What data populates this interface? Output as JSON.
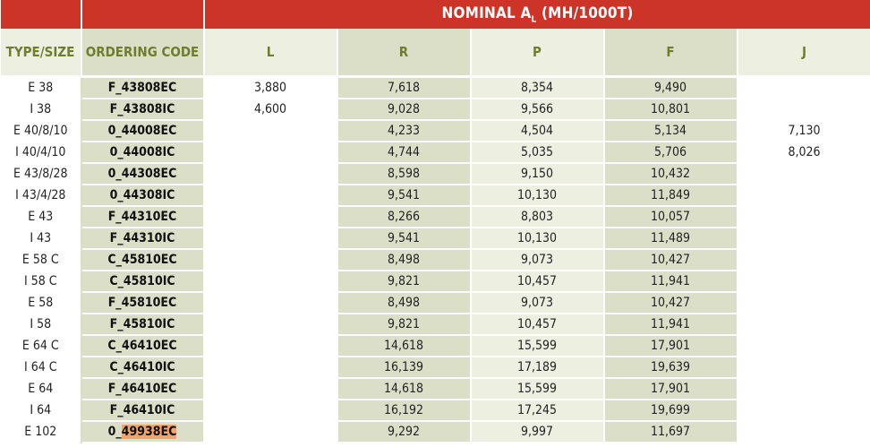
{
  "header": {
    "nominal_label": "NOMINAL A",
    "nominal_sub": "L",
    "nominal_units": " (MH/1000T)"
  },
  "columns": [
    "TYPE/SIZE",
    "ORDERING CODE",
    "L",
    "R",
    "P",
    "F",
    "J"
  ],
  "rows": [
    {
      "type": "E 38",
      "code_pre": "F_",
      "code_main": "43808EC",
      "L": "3,880",
      "R": "7,618",
      "P": "8,354",
      "F": "9,490",
      "J": ""
    },
    {
      "type": "I 38",
      "code_pre": "F_",
      "code_main": "43808IC",
      "L": "4,600",
      "R": "9,028",
      "P": "9,566",
      "F": "10,801",
      "J": ""
    },
    {
      "type": "E 40/8/10",
      "code_pre": "0_",
      "code_main": "44008EC",
      "L": "",
      "R": "4,233",
      "P": "4,504",
      "F": "5,134",
      "J": "7,130"
    },
    {
      "type": "I 40/4/10",
      "code_pre": "0_",
      "code_main": "44008IC",
      "L": "",
      "R": "4,744",
      "P": "5,035",
      "F": "5,706",
      "J": "8,026"
    },
    {
      "type": "E 43/8/28",
      "code_pre": "0_",
      "code_main": "44308EC",
      "L": "",
      "R": "8,598",
      "P": "9,150",
      "F": "10,432",
      "J": ""
    },
    {
      "type": "I 43/4/28",
      "code_pre": "0_",
      "code_main": "44308IC",
      "L": "",
      "R": "9,541",
      "P": "10,130",
      "F": "11,849",
      "J": ""
    },
    {
      "type": "E 43",
      "code_pre": "F_",
      "code_main": "44310EC",
      "L": "",
      "R": "8,266",
      "P": "8,803",
      "F": "10,057",
      "J": ""
    },
    {
      "type": "I 43",
      "code_pre": "F_",
      "code_main": "44310IC",
      "L": "",
      "R": "9,541",
      "P": "10,130",
      "F": "11,489",
      "J": ""
    },
    {
      "type": "E 58 C",
      "code_pre": "C_",
      "code_main": "45810EC",
      "L": "",
      "R": "8,498",
      "P": "9,073",
      "F": "10,427",
      "J": ""
    },
    {
      "type": "I 58 C",
      "code_pre": "C_",
      "code_main": "45810IC",
      "L": "",
      "R": "9,821",
      "P": "10,457",
      "F": "11,941",
      "J": ""
    },
    {
      "type": "E 58",
      "code_pre": "F_",
      "code_main": "45810EC",
      "L": "",
      "R": "8,498",
      "P": "9,073",
      "F": "10,427",
      "J": ""
    },
    {
      "type": "I 58",
      "code_pre": "F_",
      "code_main": "45810IC",
      "L": "",
      "R": "9,821",
      "P": "10,457",
      "F": "11,941",
      "J": ""
    },
    {
      "type": "E 64 C",
      "code_pre": "C_",
      "code_main": "46410EC",
      "L": "",
      "R": "14,618",
      "P": "15,599",
      "F": "17,901",
      "J": ""
    },
    {
      "type": "I 64 C",
      "code_pre": "C_",
      "code_main": "46410IC",
      "L": "",
      "R": "16,139",
      "P": "17,189",
      "F": "19,639",
      "J": ""
    },
    {
      "type": "E 64",
      "code_pre": "F_",
      "code_main": "46410EC",
      "L": "",
      "R": "14,618",
      "P": "15,599",
      "F": "17,901",
      "J": ""
    },
    {
      "type": "I 64",
      "code_pre": "F_",
      "code_main": "46410IC",
      "L": "",
      "R": "16,192",
      "P": "17,245",
      "F": "19,699",
      "J": ""
    },
    {
      "type": "E 102",
      "code_pre": "0_",
      "code_main": "49938EC",
      "L": "",
      "R": "9,292",
      "P": "9,997",
      "F": "11,697",
      "J": "",
      "highlight": true
    }
  ],
  "colors": {
    "banner": "#cc3427",
    "header_text": "#6e7d2e",
    "shade_light": "#edefe0",
    "shade_dark": "#dcdfc8",
    "highlight": "#f2a46a"
  }
}
